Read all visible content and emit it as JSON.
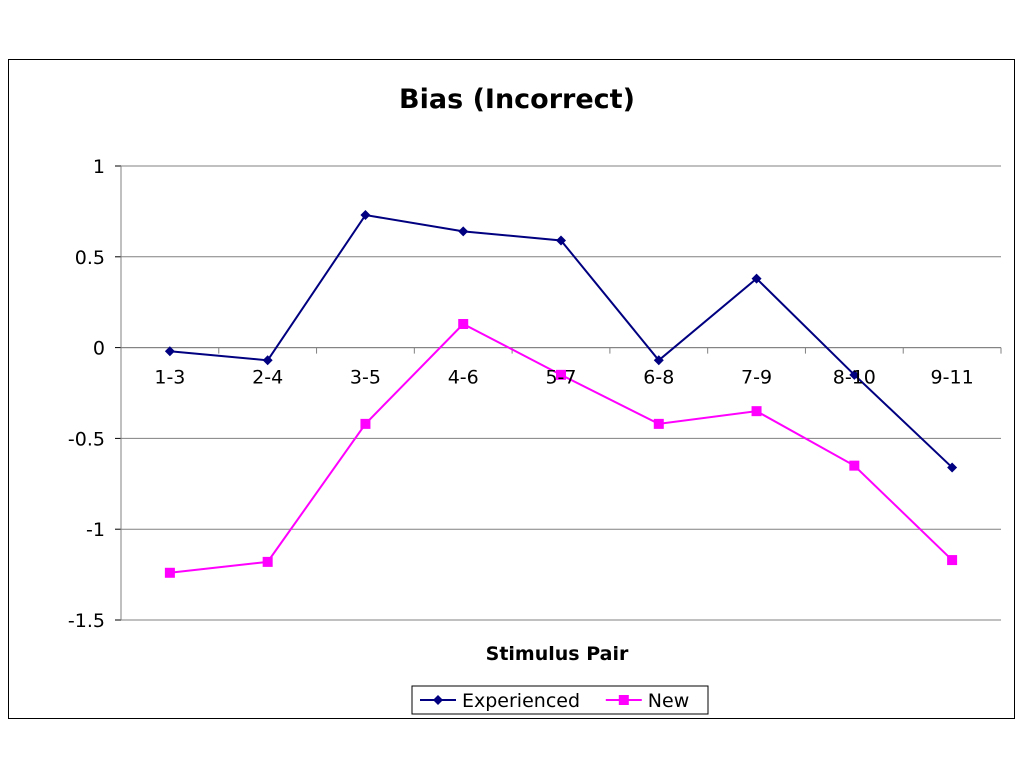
{
  "chart_data": {
    "type": "line",
    "title": "Bias (Incorrect)",
    "xlabel": "Stimulus Pair",
    "ylabel": "",
    "categories": [
      "1-3",
      "2-4",
      "3-5",
      "4-6",
      "5-7",
      "6-8",
      "7-9",
      "8-10",
      "9-11"
    ],
    "y_ticks": [
      "1",
      "0.5",
      "0",
      "-0.5",
      "-1",
      "-1.5"
    ],
    "ylim": [
      -1.5,
      1
    ],
    "grid": true,
    "legend_position": "bottom",
    "series": [
      {
        "name": "Experienced",
        "color": "#000080",
        "marker": "diamond",
        "values": [
          -0.02,
          -0.07,
          0.73,
          0.64,
          0.59,
          -0.07,
          0.38,
          -0.15,
          -0.66
        ]
      },
      {
        "name": "New",
        "color": "#FF00FF",
        "marker": "square",
        "values": [
          -1.24,
          -1.18,
          -0.42,
          0.13,
          -0.15,
          -0.42,
          -0.35,
          -0.65,
          -1.17
        ]
      }
    ]
  }
}
